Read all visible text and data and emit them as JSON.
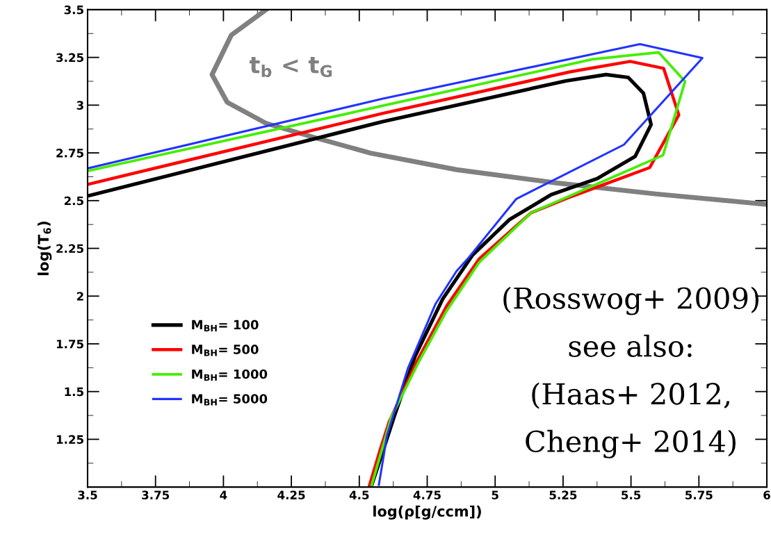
{
  "chart_data": {
    "type": "line",
    "xlabel": "log(ρ[g/ccm])",
    "ylabel": "log(T$_{6}$)",
    "xlim": [
      3.5,
      6
    ],
    "ylim": [
      1,
      3.5
    ],
    "xticks": [
      3.5,
      3.75,
      4,
      4.25,
      4.5,
      4.75,
      5,
      5.25,
      5.5,
      5.75,
      6
    ],
    "yticks": [
      1.25,
      1.5,
      1.75,
      2,
      2.25,
      2.5,
      2.75,
      3,
      3.25,
      3.5
    ],
    "grid": false,
    "legend": "left",
    "marker": "none",
    "line_style": "solid",
    "series": [
      {
        "color": "#808080",
        "x": [
          4.155,
          4.029,
          3.958,
          4.014,
          4.157,
          4.329,
          4.541,
          4.858,
          5.224,
          5.59,
          6.0
        ],
        "values": [
          3.498,
          3.367,
          3.16,
          3.015,
          2.905,
          2.833,
          2.749,
          2.662,
          2.593,
          2.535,
          2.48
        ]
      },
      {
        "name": "M$_{BH}$= 100",
        "color": "#000000",
        "x": [
          3.5,
          4.584,
          5.26,
          5.408,
          5.49,
          5.546,
          5.574,
          5.515,
          5.375,
          5.206,
          5.052,
          4.917,
          4.807,
          4.705,
          4.628,
          4.584,
          4.546
        ],
        "values": [
          2.524,
          2.913,
          3.127,
          3.16,
          3.145,
          3.062,
          2.898,
          2.731,
          2.615,
          2.531,
          2.4,
          2.215,
          1.985,
          1.684,
          1.367,
          1.175,
          1.011
        ]
      },
      {
        "name": "M$_{BH}$= 500",
        "color": "#ff0000",
        "x": [
          3.5,
          4.584,
          5.278,
          5.497,
          5.62,
          5.676,
          5.569,
          5.278,
          5.132,
          4.942,
          4.822,
          4.712,
          4.61,
          4.577,
          4.538
        ],
        "values": [
          2.585,
          2.956,
          3.175,
          3.229,
          3.193,
          2.949,
          2.673,
          2.52,
          2.436,
          2.196,
          1.949,
          1.658,
          1.342,
          1.196,
          1.011
        ]
      },
      {
        "name": "M$_{BH}$= 1000",
        "color": "#44ee00",
        "x": [
          3.5,
          4.584,
          5.357,
          5.602,
          5.699,
          5.618,
          5.132,
          4.942,
          4.822,
          4.72,
          4.618,
          4.546
        ],
        "values": [
          2.655,
          2.996,
          3.24,
          3.276,
          3.124,
          2.738,
          2.436,
          2.178,
          1.924,
          1.658,
          1.367,
          1.011
        ]
      },
      {
        "name": "M$_{BH}$= 5000",
        "color": "#2233ff",
        "x": [
          3.5,
          4.584,
          5.533,
          5.763,
          5.474,
          5.078,
          4.904,
          4.858,
          4.781,
          4.679,
          4.602,
          4.572
        ],
        "values": [
          2.669,
          3.033,
          3.32,
          3.247,
          2.793,
          2.509,
          2.204,
          2.131,
          1.96,
          1.622,
          1.269,
          1.011
        ]
      }
    ],
    "annotations": [
      "t$_{b}$ < t$_{G}$",
      "(Rosswog+ 2009)",
      "see also:",
      "(Haas+ 2012,",
      "Cheng+ 2014)"
    ]
  }
}
